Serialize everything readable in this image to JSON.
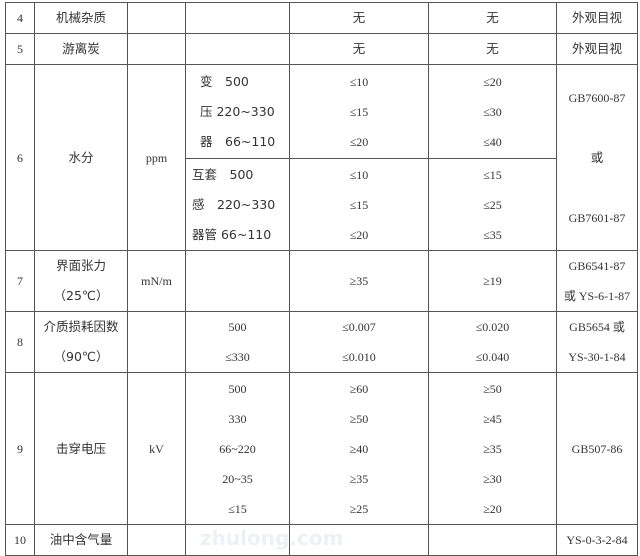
{
  "watermark": "zhulong.com",
  "rows": {
    "r4": {
      "no": "4",
      "item": "机械杂质",
      "unit": "",
      "cond": "",
      "v1": "无",
      "v2": "无",
      "std": "外观目视"
    },
    "r5": {
      "no": "5",
      "item": "游离炭",
      "unit": "",
      "cond": "",
      "v1": "无",
      "v2": "无",
      "std": "外观目视"
    },
    "r6": {
      "no": "6",
      "item": "水分",
      "unit": "ppm",
      "a": {
        "cond": [
          "变　500",
          "压 220~330",
          "器　66~110"
        ],
        "v1": [
          "≤10",
          "≤15",
          "≤20"
        ],
        "v2": [
          "≤20",
          "≤30",
          "≤40"
        ]
      },
      "b": {
        "cond": [
          "互套　500",
          "感　220~330",
          "器管 66~110"
        ],
        "v1": [
          "≤10",
          "≤15",
          "≤20"
        ],
        "v2": [
          "≤15",
          "≤25",
          "≤35"
        ]
      },
      "std": [
        "GB7600-87",
        "或",
        "GB7601-87"
      ]
    },
    "r7": {
      "no": "7",
      "item": [
        "界面张力",
        "（25℃）"
      ],
      "unit": "mN/m",
      "cond": "",
      "v1": "≥35",
      "v2": "≥19",
      "std": [
        "GB6541-87",
        "或 YS-6-1-87"
      ]
    },
    "r8": {
      "no": "8",
      "item": [
        "介质损耗因数",
        "（90℃）"
      ],
      "unit": "",
      "cond": [
        "500",
        "≤330"
      ],
      "v1": [
        "≤0.007",
        "≤0.010"
      ],
      "v2": [
        "≤0.020",
        "≤0.040"
      ],
      "std": [
        "GB5654 或",
        "YS-30-1-84"
      ]
    },
    "r9": {
      "no": "9",
      "item": "击穿电压",
      "unit": "kV",
      "cond": [
        "500",
        "330",
        "66~220",
        "20~35",
        "≤15"
      ],
      "v1": [
        "≥60",
        "≥50",
        "≥40",
        "≥35",
        "≥25"
      ],
      "v2": [
        "≥50",
        "≥45",
        "≥35",
        "≥30",
        "≥20"
      ],
      "std": "GB507-86"
    },
    "r10": {
      "no": "10",
      "item": "油中含气量",
      "unit": "",
      "cond": "",
      "v1": "",
      "v2": "",
      "std": "YS-0-3-2-84"
    }
  }
}
